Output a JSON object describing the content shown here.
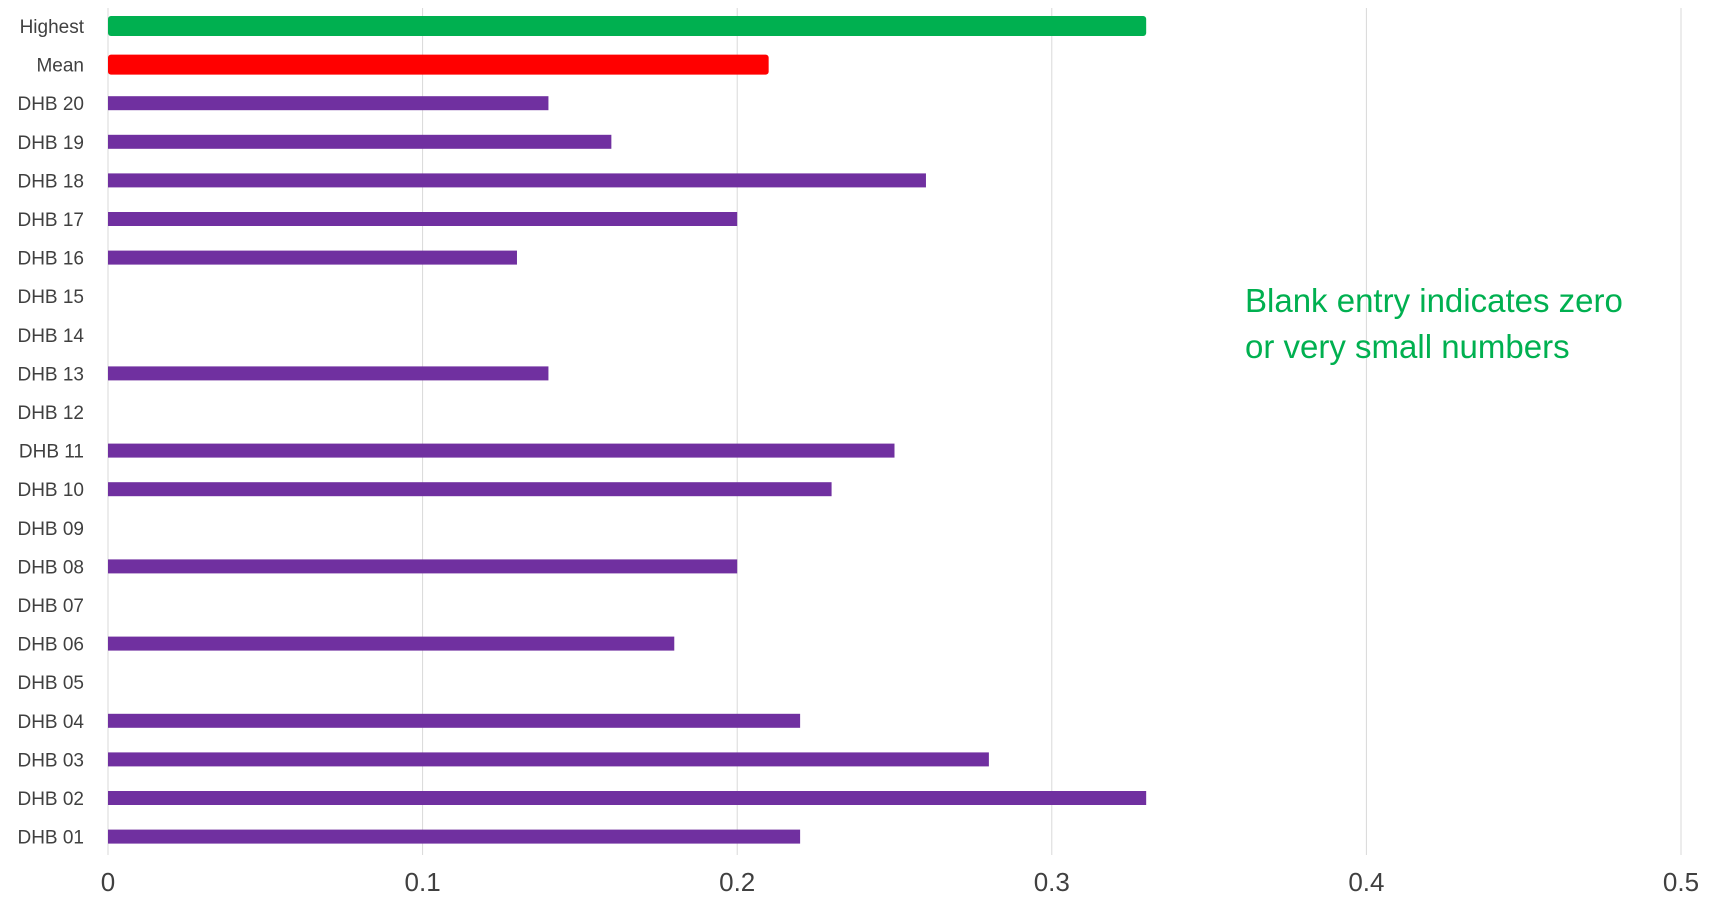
{
  "chart_data": {
    "type": "bar",
    "orientation": "horizontal",
    "categories": [
      "Highest",
      "Mean",
      "DHB 20",
      "DHB 19",
      "DHB 18",
      "DHB 17",
      "DHB 16",
      "DHB 15",
      "DHB 14",
      "DHB 13",
      "DHB 12",
      "DHB 11",
      "DHB 10",
      "DHB 09",
      "DHB 08",
      "DHB 07",
      "DHB 06",
      "DHB 05",
      "DHB 04",
      "DHB 03",
      "DHB 02",
      "DHB 01"
    ],
    "values": [
      0.33,
      0.21,
      0.14,
      0.16,
      0.26,
      0.2,
      0.13,
      0,
      0,
      0.14,
      0,
      0.25,
      0.23,
      0,
      0.2,
      0,
      0.18,
      0,
      0.22,
      0.28,
      0.33,
      0.22
    ],
    "bar_colors": {
      "Highest": "#00b050",
      "Mean": "#ff0000",
      "default": "#7030a0"
    },
    "xlim": [
      0,
      0.5
    ],
    "xticks": [
      "0",
      "0.1",
      "0.2",
      "0.3",
      "0.4",
      "0.5"
    ],
    "grid": true,
    "title": "",
    "xlabel": "",
    "ylabel": ""
  },
  "annotation": {
    "line1": "Blank entry indicates zero",
    "line2": "or very small numbers",
    "color": "#00b050"
  }
}
